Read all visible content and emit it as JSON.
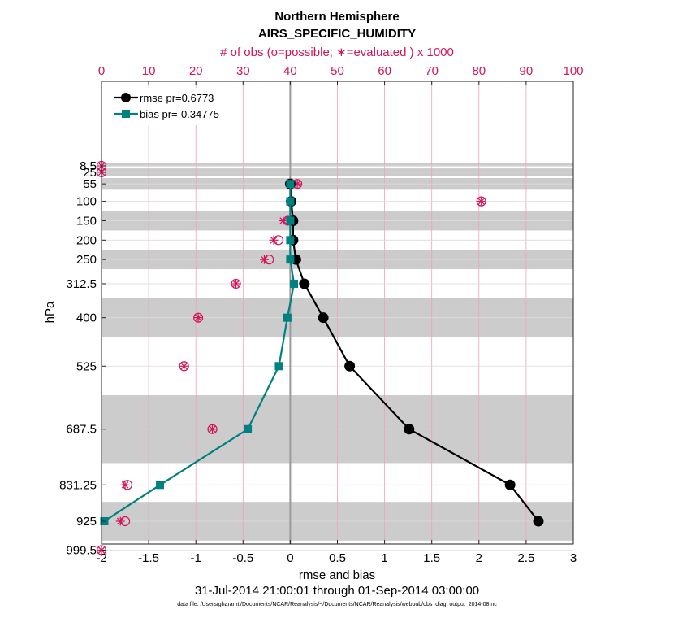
{
  "chart_data": {
    "type": "line",
    "title": "Northern Hemisphere",
    "subtitle": "AIRS_SPECIFIC_HUMIDITY",
    "top_axis_label": "# of obs (o=possible; ∗=evaluated ) x 1000",
    "xlabel": "rmse and bias",
    "ylabel": "hPa",
    "date_range": "31-Jul-2014 21:00:01 through 01-Sep-2014 03:00:00",
    "footnote": "data file: /Users/gharamti/Documents/NCAR/Reanalysis/~/Documents/NCAR/Reanalysis/webpub/obs_diag_output_2014-08.nc",
    "xlim": [
      -2,
      3
    ],
    "x_ticks": [
      "-2",
      "-1.5",
      "-1",
      "-0.5",
      "0",
      "0.5",
      "1",
      "1.5",
      "2",
      "2.5",
      "3"
    ],
    "top_xlim": [
      0,
      100
    ],
    "top_ticks": [
      "0",
      "10",
      "20",
      "30",
      "40",
      "50",
      "60",
      "70",
      "80",
      "90",
      "100"
    ],
    "levels": [
      8.5,
      25,
      55,
      100,
      150,
      200,
      250,
      312.5,
      400,
      525,
      687.5,
      831.25,
      925,
      999.5
    ],
    "level_labels": [
      "8.5",
      "25",
      "55",
      "100",
      "150",
      "200",
      "250",
      "312.5",
      "400",
      "525",
      "687.5",
      "831.25",
      "925",
      "999.5"
    ],
    "shaded_bands_hPa": [
      [
        0,
        10
      ],
      [
        15,
        35
      ],
      [
        40,
        70
      ],
      [
        125,
        175
      ],
      [
        225,
        275
      ],
      [
        350,
        450
      ],
      [
        600,
        775
      ],
      [
        875,
        975
      ]
    ],
    "legend": [
      "rmse pr=0.6773",
      "bias pr=-0.34775"
    ],
    "series": [
      {
        "name": "rmse pr=0.6773",
        "color": "#000000",
        "levels": [
          55,
          100,
          150,
          200,
          250,
          312.5,
          400,
          525,
          687.5,
          831.25,
          925
        ],
        "values": [
          0.0,
          0.01,
          0.03,
          0.03,
          0.06,
          0.15,
          0.35,
          0.63,
          1.26,
          2.33,
          2.63
        ]
      },
      {
        "name": "bias pr=-0.34775",
        "color": "#008080",
        "levels": [
          55,
          100,
          150,
          200,
          250,
          312.5,
          400,
          525,
          687.5,
          831.25,
          925
        ],
        "values": [
          0.0,
          0.0,
          0.0,
          0.0,
          0.0,
          0.04,
          -0.03,
          -0.12,
          -0.45,
          -1.38,
          -1.97
        ]
      }
    ],
    "obs_possible_x1000": {
      "color": "#d4145a",
      "levels": [
        8.5,
        25,
        55,
        100,
        150,
        200,
        250,
        312.5,
        400,
        525,
        687.5,
        831.25,
        925,
        999.5
      ],
      "values": [
        0,
        0,
        41.5,
        80.5,
        39.5,
        37.5,
        35.5,
        28.5,
        20.5,
        17.5,
        23.5,
        5.5,
        5,
        0
      ]
    },
    "obs_evaluated_x1000": {
      "color": "#d4145a",
      "levels": [
        8.5,
        25,
        55,
        100,
        150,
        200,
        250,
        312.5,
        400,
        525,
        687.5,
        831.25,
        925,
        999.5
      ],
      "values": [
        0,
        0,
        41.5,
        80.5,
        38.5,
        36.5,
        34.5,
        28.5,
        20.5,
        17.5,
        23.5,
        5,
        4,
        0
      ]
    }
  }
}
